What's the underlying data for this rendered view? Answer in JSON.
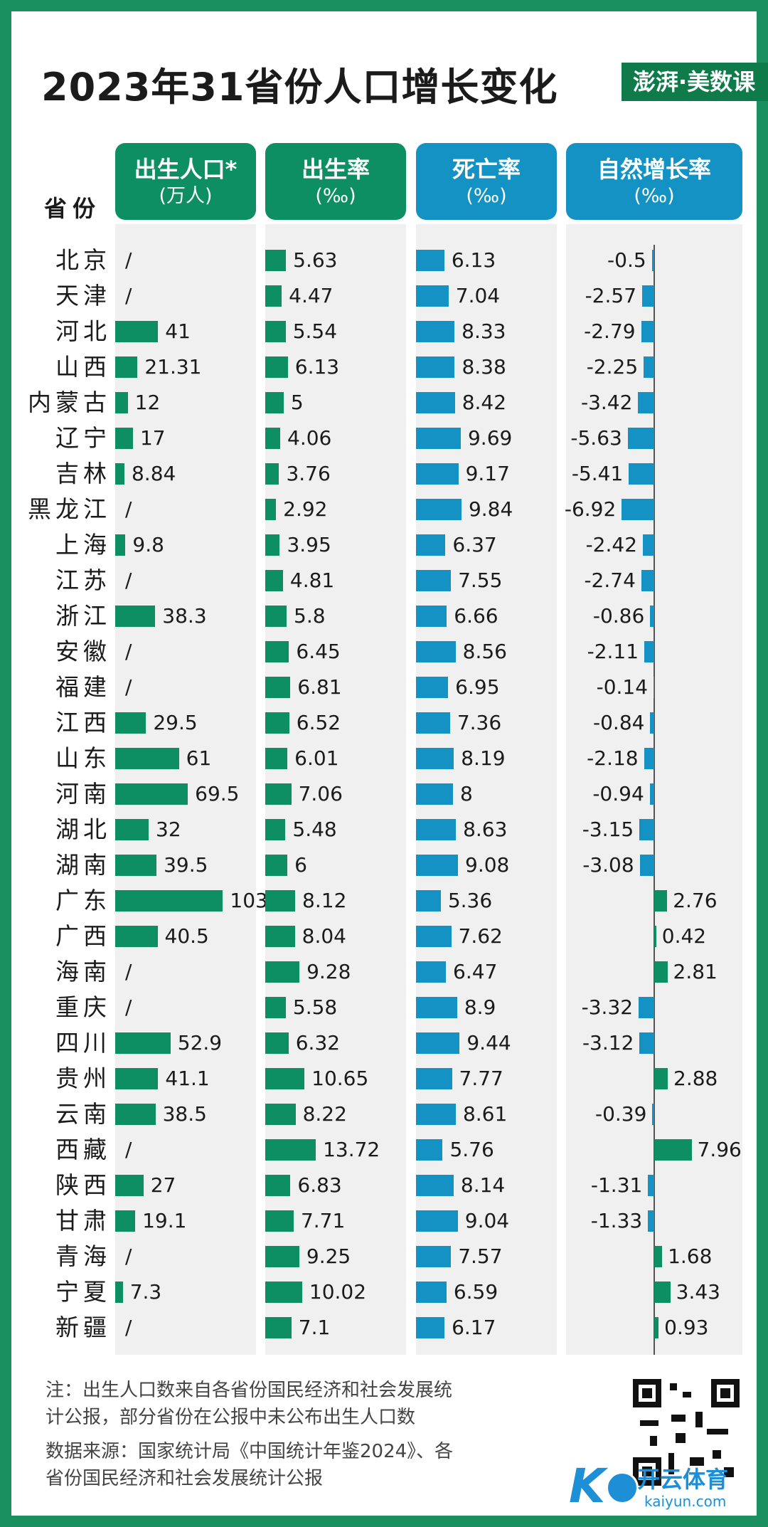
{
  "title": "2023年31省份人口增长变化",
  "logo": "澎湃·美数课",
  "province_header": "省份",
  "columns": [
    {
      "title": "出生人口*",
      "unit": "(万人)",
      "color": "#0e8e63"
    },
    {
      "title": "出生率",
      "unit": "(‰)",
      "color": "#0e8e63"
    },
    {
      "title": "死亡率",
      "unit": "(‰)",
      "color": "#1492c4"
    },
    {
      "title": "自然增长率",
      "unit": "(‰)",
      "color": "#1492c4"
    }
  ],
  "chart_data": {
    "type": "bar",
    "title": "2023年31省份人口增长变化",
    "categories": [
      "北京",
      "天津",
      "河北",
      "山西",
      "内蒙古",
      "辽宁",
      "吉林",
      "黑龙江",
      "上海",
      "江苏",
      "浙江",
      "安徽",
      "福建",
      "江西",
      "山东",
      "河南",
      "湖北",
      "湖南",
      "广东",
      "广西",
      "海南",
      "重庆",
      "四川",
      "贵州",
      "云南",
      "西藏",
      "陕西",
      "甘肃",
      "青海",
      "宁夏",
      "新疆"
    ],
    "series": [
      {
        "name": "出生人口*(万人)",
        "values": [
          null,
          null,
          41,
          21.31,
          12,
          17,
          8.84,
          null,
          9.8,
          null,
          38.3,
          null,
          null,
          29.5,
          61,
          69.5,
          32,
          39.5,
          103,
          40.5,
          null,
          null,
          52.9,
          41.1,
          38.5,
          null,
          27,
          19.1,
          null,
          7.3,
          null
        ],
        "missing_label": "/"
      },
      {
        "name": "出生率(‰)",
        "values": [
          5.63,
          4.47,
          5.54,
          6.13,
          5,
          4.06,
          3.76,
          2.92,
          3.95,
          4.81,
          5.8,
          6.45,
          6.81,
          6.52,
          6.01,
          7.06,
          5.48,
          6,
          8.12,
          8.04,
          9.28,
          5.58,
          6.32,
          10.65,
          8.22,
          13.72,
          6.83,
          7.71,
          9.25,
          10.02,
          7.1
        ]
      },
      {
        "name": "死亡率(‰)",
        "values": [
          6.13,
          7.04,
          8.33,
          8.38,
          8.42,
          9.69,
          9.17,
          9.84,
          6.37,
          7.55,
          6.66,
          8.56,
          6.95,
          7.36,
          8.19,
          8,
          8.63,
          9.08,
          5.36,
          7.62,
          6.47,
          8.9,
          9.44,
          7.77,
          8.61,
          5.76,
          8.14,
          9.04,
          7.57,
          6.59,
          6.17
        ]
      },
      {
        "name": "自然增长率(‰)",
        "values": [
          -0.5,
          -2.57,
          -2.79,
          -2.25,
          -3.42,
          -5.63,
          -5.41,
          -6.92,
          -2.42,
          -2.74,
          -0.86,
          -2.11,
          -0.14,
          -0.84,
          -2.18,
          -0.94,
          -3.15,
          -3.08,
          2.76,
          0.42,
          2.81,
          -3.32,
          -3.12,
          2.88,
          -0.39,
          7.96,
          -1.31,
          -1.33,
          1.68,
          3.43,
          0.93
        ]
      }
    ]
  },
  "notes": {
    "note_line1": "注：出生人口数来自各省份国民经济和社会发展统",
    "note_line2": "计公报，部分省份在公报中未公布出生人口数",
    "source_line1": "数据来源：国家统计局《中国统计年鉴2024》、各",
    "source_line2": "省份国民经济和社会发展统计公报"
  },
  "watermark": {
    "letter": "K",
    "text": "开云体育",
    "domain": "kaiyun.com"
  }
}
